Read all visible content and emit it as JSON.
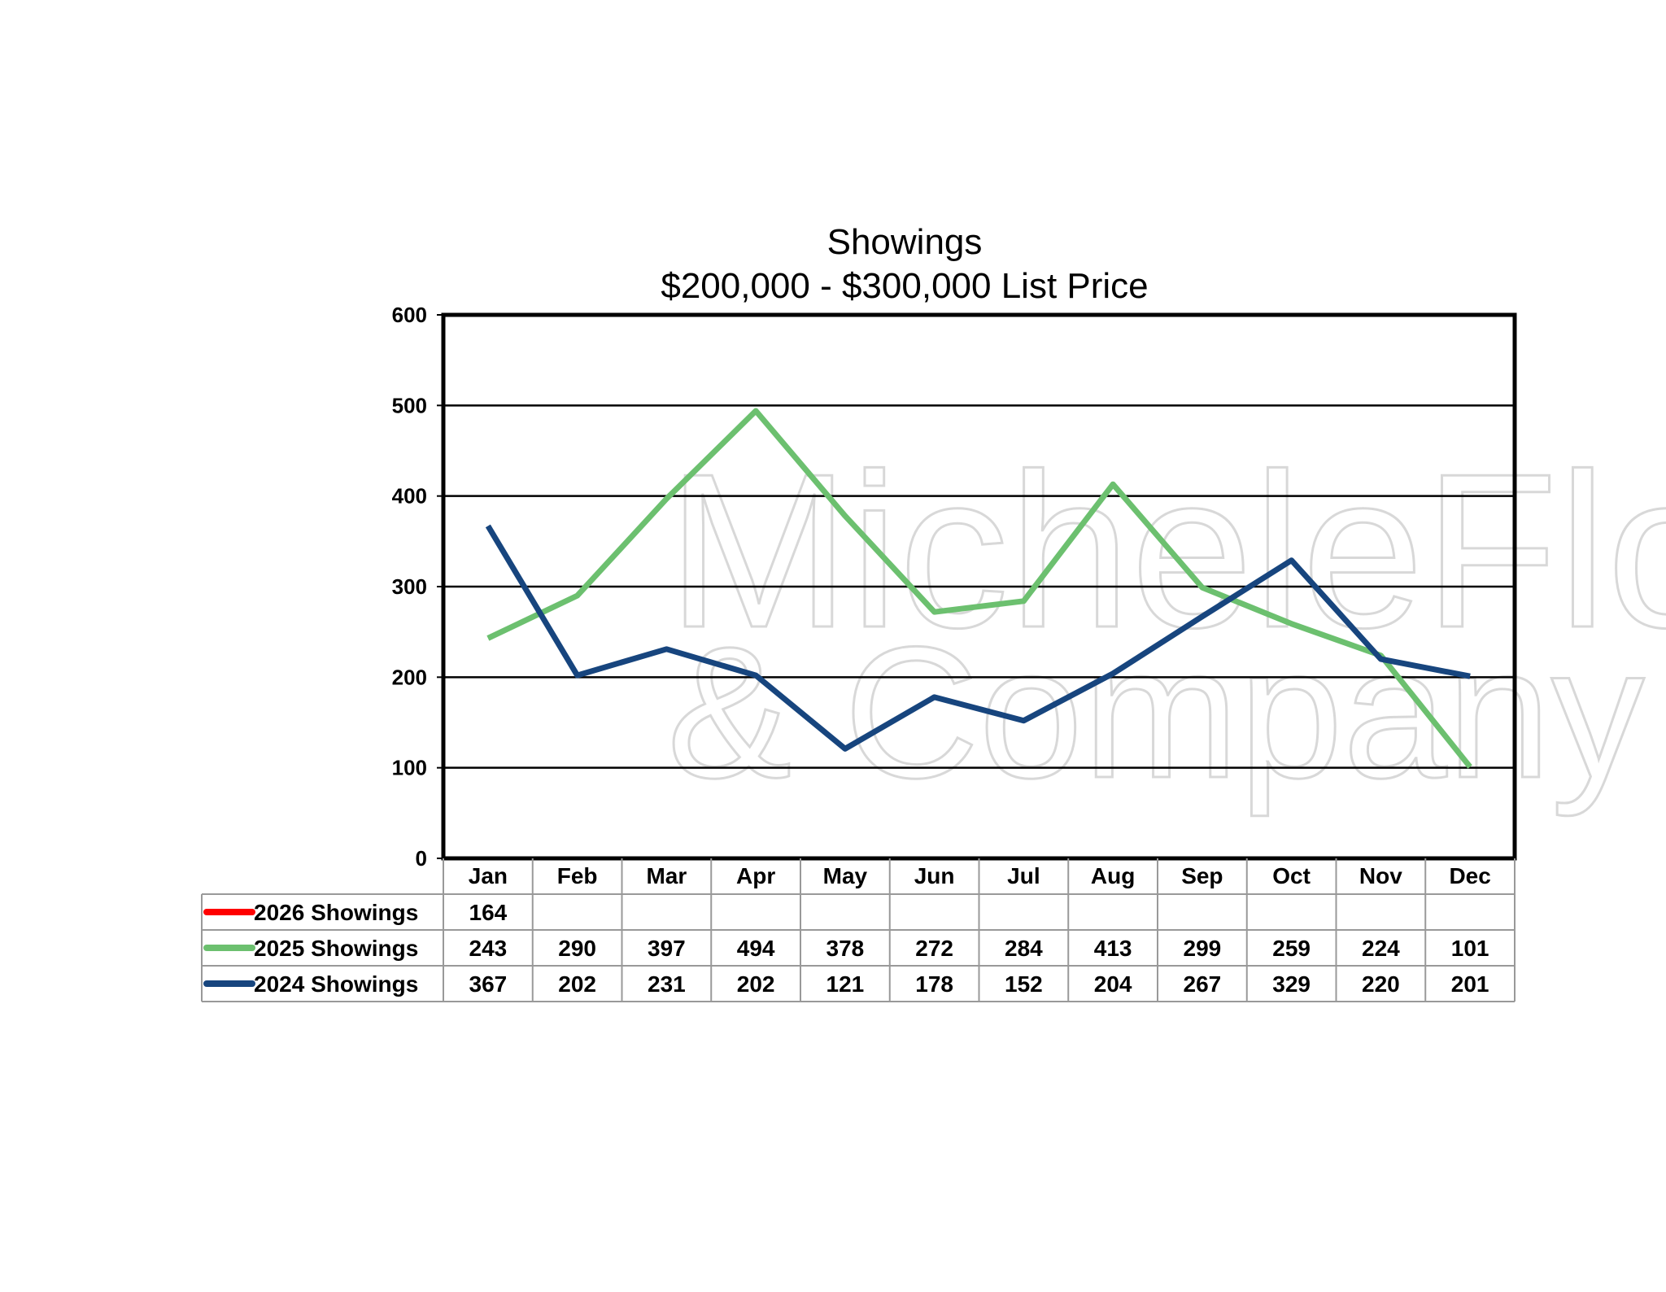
{
  "chart_data": {
    "type": "line",
    "title": "Showings",
    "subtitle": "$200,000 - $300,000 List Price",
    "xlabel": "",
    "ylabel": "",
    "ylim": [
      0,
      600
    ],
    "yticks": [
      "0",
      "100",
      "200",
      "300",
      "400",
      "500",
      "600"
    ],
    "grid": true,
    "legend_placement": "data-table-left",
    "categories": [
      "Jan",
      "Feb",
      "Mar",
      "Apr",
      "May",
      "Jun",
      "Jul",
      "Aug",
      "Sep",
      "Oct",
      "Nov",
      "Dec"
    ],
    "series": [
      {
        "name": "2026 Showings",
        "color": "#ff0000",
        "values": [
          164,
          null,
          null,
          null,
          null,
          null,
          null,
          null,
          null,
          null,
          null,
          null
        ]
      },
      {
        "name": "2025 Showings",
        "color": "#6cc06f",
        "values": [
          243,
          290,
          397,
          494,
          378,
          272,
          284,
          413,
          299,
          259,
          224,
          101
        ]
      },
      {
        "name": "2024 Showings",
        "color": "#17457e",
        "values": [
          367,
          202,
          231,
          202,
          121,
          178,
          152,
          204,
          267,
          329,
          220,
          201
        ]
      }
    ],
    "watermark": [
      "MicheleFlory",
      "& Company"
    ]
  }
}
